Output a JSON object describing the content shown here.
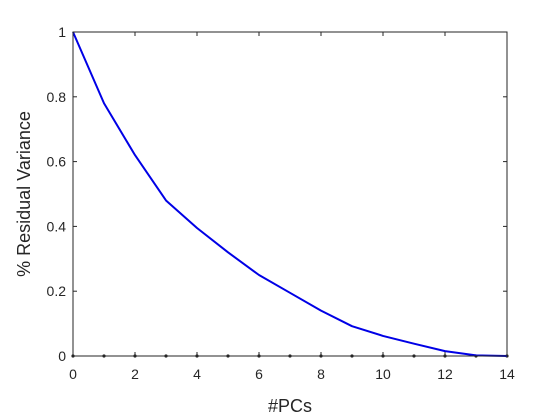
{
  "chart_data": {
    "type": "line",
    "title": "",
    "xlabel": "#PCs",
    "ylabel": "% Residual Variance",
    "xlim": [
      0,
      14
    ],
    "ylim": [
      0,
      1
    ],
    "xticks": [
      0,
      2,
      4,
      6,
      8,
      10,
      12,
      14
    ],
    "yticks": [
      0,
      0.2,
      0.4,
      0.6,
      0.8,
      1
    ],
    "grid": false,
    "series": [
      {
        "color": "#0000e6",
        "x": [
          0,
          1,
          2,
          3,
          4,
          5,
          6,
          7,
          8,
          9,
          10,
          11,
          12,
          13,
          14
        ],
        "y": [
          1.0,
          0.78,
          0.62,
          0.48,
          0.395,
          0.32,
          0.25,
          0.195,
          0.14,
          0.092,
          0.062,
          0.038,
          0.015,
          0.002,
          0.0
        ]
      }
    ],
    "baseline_markers": {
      "color": "#262626",
      "y": 0,
      "x": [
        0,
        1,
        2,
        3,
        4,
        5,
        6,
        7,
        8,
        9,
        10,
        11,
        12,
        13,
        14
      ]
    }
  }
}
